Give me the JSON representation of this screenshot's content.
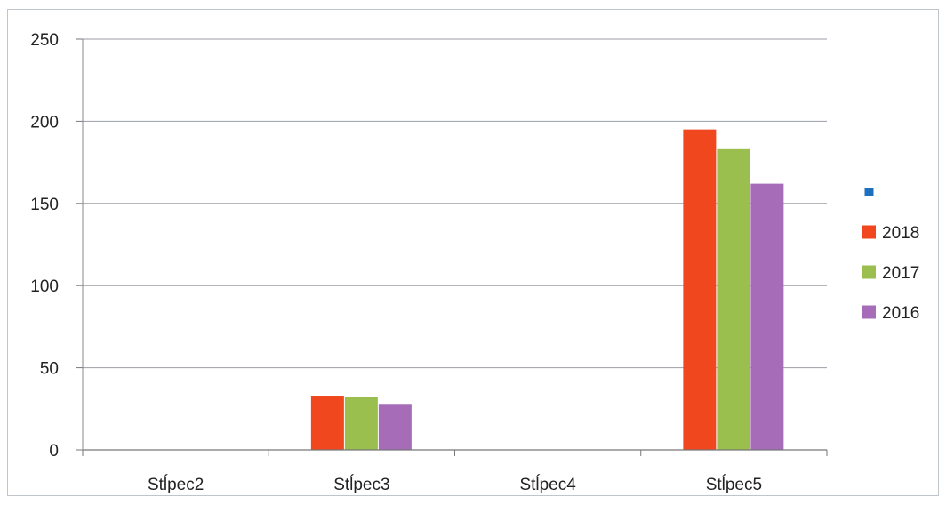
{
  "chart_data": {
    "type": "bar",
    "categories": [
      "Stĺpec2",
      "Stĺpec3",
      "Stĺpec4",
      "Stĺpec5"
    ],
    "series": [
      {
        "name": "",
        "color": "#1f6fc1",
        "values": [
          0,
          0,
          0,
          0
        ]
      },
      {
        "name": "2018",
        "color": "#f0471f",
        "values": [
          0,
          33,
          0,
          195
        ]
      },
      {
        "name": "2017",
        "color": "#9bbf4e",
        "values": [
          0,
          32,
          0,
          183
        ]
      },
      {
        "name": "2016",
        "color": "#a66cb8",
        "values": [
          0,
          28,
          0,
          162
        ]
      }
    ],
    "yticks": [
      "0",
      "50",
      "100",
      "150",
      "200",
      "250"
    ],
    "ylim": [
      0,
      250
    ],
    "grid": true,
    "legend_position": "right"
  }
}
